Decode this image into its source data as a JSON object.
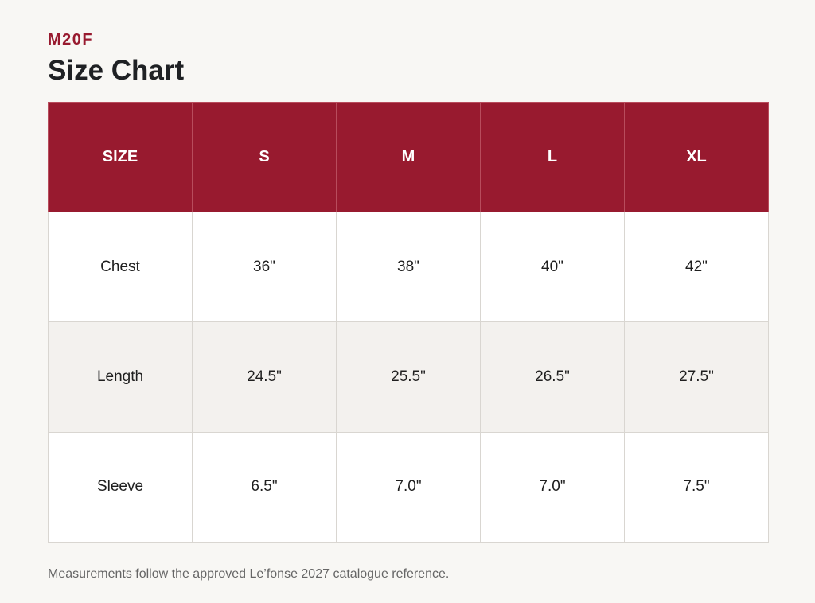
{
  "brand": "M20F",
  "title": "Size Chart",
  "table": {
    "headers": [
      "SIZE",
      "S",
      "M",
      "L",
      "XL"
    ],
    "rows": [
      {
        "label": "Chest",
        "values": [
          "36\"",
          "38\"",
          "40\"",
          "42\""
        ]
      },
      {
        "label": "Length",
        "values": [
          "24.5\"",
          "25.5\"",
          "26.5\"",
          "27.5\""
        ]
      },
      {
        "label": "Sleeve",
        "values": [
          "6.5\"",
          "7.0\"",
          "7.0\"",
          "7.5\""
        ]
      }
    ]
  },
  "footnote": "Measurements follow the approved Le’fonse 2027 catalogue reference.",
  "colors": {
    "accent": "#981a2f",
    "background": "#f8f7f4",
    "shaded_row": "#f3f1ee"
  }
}
